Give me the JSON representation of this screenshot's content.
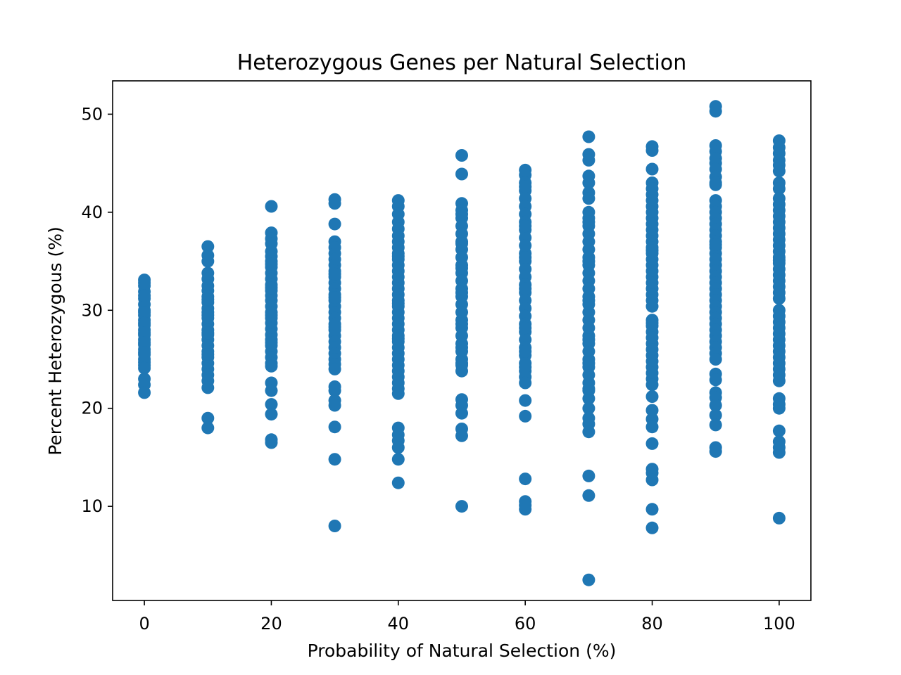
{
  "chart_data": {
    "type": "scatter",
    "title": "Heterozygous Genes per Natural Selection",
    "xlabel": "Probability of Natural Selection (%)",
    "ylabel": "Percent Heterozygous (%)",
    "xlim": [
      -5,
      105
    ],
    "ylim": [
      0.4,
      53.4
    ],
    "xticks": [
      0,
      20,
      40,
      60,
      80,
      100
    ],
    "xtick_labels": [
      "0",
      "20",
      "40",
      "60",
      "80",
      "100"
    ],
    "yticks": [
      10,
      20,
      30,
      40,
      50
    ],
    "ytick_labels": [
      "10",
      "20",
      "30",
      "40",
      "50"
    ],
    "grid": false,
    "marker_color": "#1f77b4",
    "series": [
      {
        "x": [
          0,
          0,
          0,
          0,
          0,
          0,
          0,
          0,
          0,
          0,
          0,
          0,
          0,
          0,
          0,
          0,
          0,
          0,
          0,
          0,
          0,
          0,
          0,
          0,
          0,
          0,
          0,
          0,
          0
        ],
        "y": [
          33.1,
          32.5,
          31.9,
          31.2,
          30.6,
          30.0,
          29.5,
          29.0,
          28.5,
          28.0,
          27.5,
          27.0,
          26.5,
          26.0,
          25.5,
          25.0,
          24.4,
          23.0,
          22.4,
          21.6,
          32.8,
          31.5,
          29.8,
          28.7,
          27.7,
          26.7,
          25.7,
          24.7,
          24.1
        ]
      },
      {
        "x": [
          10,
          10,
          10,
          10,
          10,
          10,
          10,
          10,
          10,
          10,
          10,
          10,
          10,
          10,
          10,
          10,
          10,
          10,
          10,
          10,
          10,
          10,
          10,
          10,
          10,
          10,
          10,
          10,
          10,
          10
        ],
        "y": [
          36.5,
          35.6,
          35.0,
          33.8,
          33.2,
          32.5,
          32.0,
          31.4,
          30.8,
          30.2,
          29.8,
          29.2,
          28.6,
          28.0,
          27.5,
          27.0,
          26.4,
          25.8,
          25.2,
          24.6,
          24.0,
          23.4,
          22.8,
          22.1,
          19.0,
          18.0,
          31.1,
          29.5,
          27.7,
          25.5
        ]
      },
      {
        "x": [
          20,
          20,
          20,
          20,
          20,
          20,
          20,
          20,
          20,
          20,
          20,
          20,
          20,
          20,
          20,
          20,
          20,
          20,
          20,
          20,
          20,
          20,
          20,
          20,
          20,
          20,
          20,
          20,
          20,
          20,
          20,
          20,
          20,
          20,
          20,
          20
        ],
        "y": [
          40.6,
          37.9,
          37.3,
          36.8,
          36.0,
          35.5,
          35.0,
          34.4,
          33.8,
          33.2,
          32.6,
          32.0,
          31.5,
          31.0,
          30.4,
          29.8,
          29.2,
          28.7,
          28.1,
          27.5,
          27.0,
          26.4,
          25.8,
          25.2,
          24.6,
          24.3,
          22.6,
          21.8,
          20.4,
          19.4,
          16.8,
          16.5,
          34.7,
          32.3,
          29.5,
          26.7
        ]
      },
      {
        "x": [
          30,
          30,
          30,
          30,
          30,
          30,
          30,
          30,
          30,
          30,
          30,
          30,
          30,
          30,
          30,
          30,
          30,
          30,
          30,
          30,
          30,
          30,
          30,
          30,
          30,
          30,
          30,
          30,
          30,
          30,
          30,
          30,
          30,
          30,
          30,
          30
        ],
        "y": [
          41.3,
          40.9,
          38.8,
          37.0,
          36.4,
          35.8,
          35.2,
          34.6,
          34.0,
          33.4,
          32.8,
          32.2,
          31.6,
          31.0,
          30.4,
          29.8,
          29.2,
          28.6,
          28.0,
          27.4,
          26.8,
          26.2,
          25.6,
          25.0,
          24.5,
          24.0,
          22.2,
          21.8,
          20.8,
          20.3,
          18.1,
          14.8,
          8.0,
          33.7,
          31.3,
          28.3
        ]
      },
      {
        "x": [
          40,
          40,
          40,
          40,
          40,
          40,
          40,
          40,
          40,
          40,
          40,
          40,
          40,
          40,
          40,
          40,
          40,
          40,
          40,
          40,
          40,
          40,
          40,
          40,
          40,
          40,
          40,
          40,
          40,
          40,
          40,
          40,
          40,
          40,
          40,
          40,
          40,
          40,
          40,
          40,
          40,
          40
        ],
        "y": [
          41.2,
          40.6,
          39.8,
          39.0,
          38.3,
          37.6,
          37.0,
          36.4,
          35.8,
          35.2,
          34.6,
          34.0,
          33.4,
          32.8,
          32.2,
          31.6,
          31.0,
          30.4,
          29.8,
          29.2,
          28.6,
          28.0,
          27.4,
          26.8,
          26.2,
          25.6,
          25.0,
          24.4,
          23.8,
          23.2,
          22.6,
          22.0,
          21.5,
          18.0,
          17.3,
          16.7,
          16.0,
          14.8,
          12.4,
          35.5,
          30.7,
          27.1
        ]
      },
      {
        "x": [
          50,
          50,
          50,
          50,
          50,
          50,
          50,
          50,
          50,
          50,
          50,
          50,
          50,
          50,
          50,
          50,
          50,
          50,
          50,
          50,
          50,
          50,
          50,
          50,
          50,
          50,
          50,
          50,
          50,
          50,
          50,
          50,
          50,
          50,
          50,
          50,
          50,
          50
        ],
        "y": [
          45.8,
          43.9,
          40.9,
          40.2,
          39.4,
          38.6,
          37.8,
          37.0,
          36.2,
          35.4,
          34.6,
          33.8,
          33.0,
          32.2,
          31.4,
          30.6,
          29.8,
          29.0,
          28.2,
          27.4,
          26.6,
          25.8,
          25.0,
          24.4,
          23.8,
          20.9,
          20.3,
          19.5,
          17.9,
          17.2,
          10.0,
          39.8,
          36.8,
          34.3,
          31.8,
          28.6,
          26.2,
          24.6
        ]
      },
      {
        "x": [
          60,
          60,
          60,
          60,
          60,
          60,
          60,
          60,
          60,
          60,
          60,
          60,
          60,
          60,
          60,
          60,
          60,
          60,
          60,
          60,
          60,
          60,
          60,
          60,
          60,
          60,
          60,
          60,
          60,
          60,
          60,
          60,
          60,
          60,
          60,
          60,
          60,
          60,
          60,
          60,
          60,
          60
        ],
        "y": [
          44.3,
          43.8,
          43.0,
          42.2,
          41.4,
          40.6,
          39.8,
          39.0,
          38.2,
          37.4,
          36.6,
          35.8,
          35.0,
          34.2,
          33.4,
          32.6,
          31.8,
          31.0,
          30.2,
          29.4,
          28.6,
          27.8,
          27.0,
          26.2,
          25.4,
          24.6,
          23.8,
          23.2,
          22.6,
          20.8,
          19.2,
          12.8,
          10.5,
          10.1,
          9.7,
          42.6,
          38.6,
          35.4,
          32.2,
          28.2,
          25.8,
          24.2
        ]
      },
      {
        "x": [
          70,
          70,
          70,
          70,
          70,
          70,
          70,
          70,
          70,
          70,
          70,
          70,
          70,
          70,
          70,
          70,
          70,
          70,
          70,
          70,
          70,
          70,
          70,
          70,
          70,
          70,
          70,
          70,
          70,
          70,
          70,
          70,
          70,
          70,
          70,
          70,
          70,
          70,
          70,
          70,
          70,
          70,
          70,
          70,
          70
        ],
        "y": [
          47.7,
          45.9,
          45.3,
          43.7,
          43.0,
          42.0,
          41.4,
          40.0,
          39.4,
          38.6,
          37.8,
          37.0,
          36.2,
          35.4,
          34.6,
          33.8,
          33.0,
          32.2,
          31.4,
          30.6,
          29.8,
          29.0,
          28.2,
          27.4,
          26.6,
          25.8,
          25.0,
          24.2,
          23.4,
          22.6,
          21.8,
          21.0,
          20.0,
          19.0,
          18.4,
          17.6,
          13.1,
          11.1,
          2.5,
          39.0,
          35.0,
          31.0,
          27.0,
          24.6,
          22.0
        ]
      },
      {
        "x": [
          80,
          80,
          80,
          80,
          80,
          80,
          80,
          80,
          80,
          80,
          80,
          80,
          80,
          80,
          80,
          80,
          80,
          80,
          80,
          80,
          80,
          80,
          80,
          80,
          80,
          80,
          80,
          80,
          80,
          80,
          80,
          80,
          80,
          80,
          80,
          80,
          80,
          80,
          80,
          80,
          80,
          80,
          80,
          80,
          80,
          80,
          80,
          80,
          80
        ],
        "y": [
          46.7,
          46.3,
          44.4,
          43.0,
          42.4,
          41.8,
          41.2,
          40.6,
          40.0,
          39.4,
          38.8,
          38.2,
          37.6,
          37.0,
          36.4,
          35.8,
          35.2,
          34.6,
          34.0,
          33.4,
          32.8,
          32.2,
          31.6,
          31.0,
          30.4,
          29.0,
          28.4,
          27.8,
          27.2,
          26.6,
          26.0,
          25.4,
          24.8,
          24.2,
          23.6,
          23.0,
          22.4,
          21.2,
          19.8,
          18.9,
          18.1,
          16.4,
          13.8,
          13.4,
          12.7,
          9.7,
          7.8,
          36.1,
          28.7
        ]
      },
      {
        "x": [
          90,
          90,
          90,
          90,
          90,
          90,
          90,
          90,
          90,
          90,
          90,
          90,
          90,
          90,
          90,
          90,
          90,
          90,
          90,
          90,
          90,
          90,
          90,
          90,
          90,
          90,
          90,
          90,
          90,
          90,
          90,
          90,
          90,
          90,
          90,
          90,
          90,
          90,
          90,
          90,
          90,
          90,
          90,
          90,
          90,
          90,
          90,
          90
        ],
        "y": [
          50.8,
          50.3,
          46.8,
          46.2,
          45.5,
          45.0,
          44.4,
          43.6,
          42.8,
          41.2,
          40.6,
          40.0,
          39.4,
          38.8,
          38.2,
          37.6,
          37.0,
          36.4,
          35.8,
          35.2,
          34.6,
          34.0,
          33.4,
          32.8,
          32.2,
          31.6,
          31.0,
          30.4,
          29.8,
          29.2,
          28.6,
          28.0,
          27.4,
          26.8,
          26.2,
          25.6,
          25.0,
          23.5,
          22.9,
          21.6,
          21.1,
          20.3,
          19.3,
          18.3,
          16.0,
          15.6,
          43.0,
          36.7
        ]
      },
      {
        "x": [
          100,
          100,
          100,
          100,
          100,
          100,
          100,
          100,
          100,
          100,
          100,
          100,
          100,
          100,
          100,
          100,
          100,
          100,
          100,
          100,
          100,
          100,
          100,
          100,
          100,
          100,
          100,
          100,
          100,
          100,
          100,
          100,
          100,
          100,
          100,
          100,
          100,
          100,
          100,
          100,
          100,
          100,
          100,
          100,
          100,
          100,
          100,
          100
        ],
        "y": [
          47.3,
          46.6,
          46.0,
          45.3,
          44.8,
          44.2,
          43.0,
          42.4,
          41.4,
          40.8,
          40.2,
          39.6,
          39.0,
          38.4,
          37.8,
          37.2,
          36.6,
          36.0,
          35.4,
          34.8,
          34.2,
          33.6,
          33.0,
          32.4,
          31.8,
          31.2,
          30.0,
          29.4,
          28.8,
          28.2,
          27.6,
          27.0,
          26.4,
          25.8,
          25.2,
          24.6,
          24.0,
          23.4,
          22.8,
          21.0,
          20.4,
          20.0,
          17.7,
          16.6,
          16.0,
          15.5,
          8.8,
          35.1
        ]
      }
    ]
  }
}
